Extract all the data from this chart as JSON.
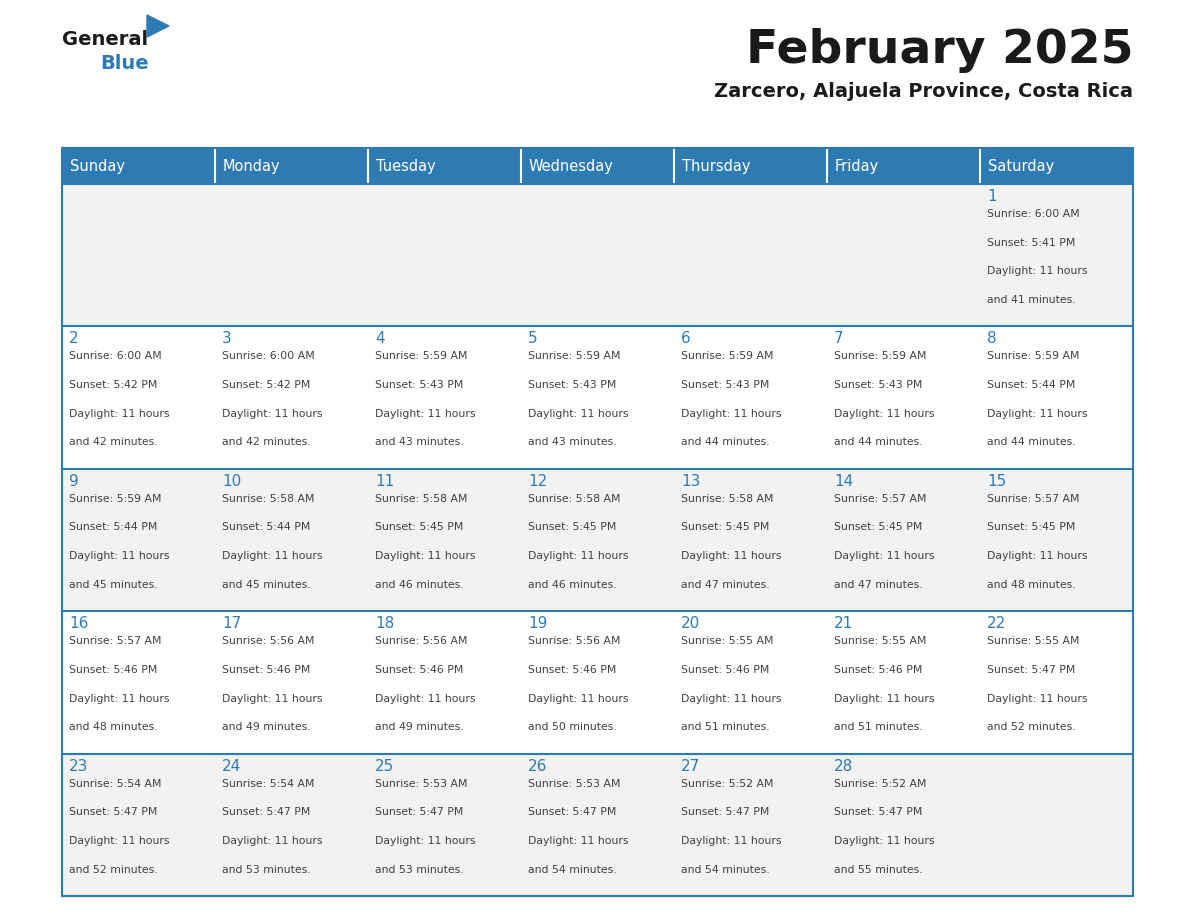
{
  "title": "February 2025",
  "subtitle": "Zarcero, Alajuela Province, Costa Rica",
  "days_of_week": [
    "Sunday",
    "Monday",
    "Tuesday",
    "Wednesday",
    "Thursday",
    "Friday",
    "Saturday"
  ],
  "header_bg": "#2E7BB4",
  "header_text": "#FFFFFF",
  "cell_bg_odd": "#F2F2F2",
  "cell_bg_even": "#FFFFFF",
  "border_color": "#2E7BB4",
  "day_number_color": "#2E7BB4",
  "cell_text_color": "#404040",
  "title_color": "#1a1a1a",
  "subtitle_color": "#1a1a1a",
  "logo_general_color": "#1a1a1a",
  "logo_blue_color": "#2E7BB4",
  "calendar_data": [
    [
      null,
      null,
      null,
      null,
      null,
      null,
      {
        "day": 1,
        "sunrise": "6:00 AM",
        "sunset": "5:41 PM",
        "daylight": "11 hours and 41 minutes."
      }
    ],
    [
      {
        "day": 2,
        "sunrise": "6:00 AM",
        "sunset": "5:42 PM",
        "daylight": "11 hours and 42 minutes."
      },
      {
        "day": 3,
        "sunrise": "6:00 AM",
        "sunset": "5:42 PM",
        "daylight": "11 hours and 42 minutes."
      },
      {
        "day": 4,
        "sunrise": "5:59 AM",
        "sunset": "5:43 PM",
        "daylight": "11 hours and 43 minutes."
      },
      {
        "day": 5,
        "sunrise": "5:59 AM",
        "sunset": "5:43 PM",
        "daylight": "11 hours and 43 minutes."
      },
      {
        "day": 6,
        "sunrise": "5:59 AM",
        "sunset": "5:43 PM",
        "daylight": "11 hours and 44 minutes."
      },
      {
        "day": 7,
        "sunrise": "5:59 AM",
        "sunset": "5:43 PM",
        "daylight": "11 hours and 44 minutes."
      },
      {
        "day": 8,
        "sunrise": "5:59 AM",
        "sunset": "5:44 PM",
        "daylight": "11 hours and 44 minutes."
      }
    ],
    [
      {
        "day": 9,
        "sunrise": "5:59 AM",
        "sunset": "5:44 PM",
        "daylight": "11 hours and 45 minutes."
      },
      {
        "day": 10,
        "sunrise": "5:58 AM",
        "sunset": "5:44 PM",
        "daylight": "11 hours and 45 minutes."
      },
      {
        "day": 11,
        "sunrise": "5:58 AM",
        "sunset": "5:45 PM",
        "daylight": "11 hours and 46 minutes."
      },
      {
        "day": 12,
        "sunrise": "5:58 AM",
        "sunset": "5:45 PM",
        "daylight": "11 hours and 46 minutes."
      },
      {
        "day": 13,
        "sunrise": "5:58 AM",
        "sunset": "5:45 PM",
        "daylight": "11 hours and 47 minutes."
      },
      {
        "day": 14,
        "sunrise": "5:57 AM",
        "sunset": "5:45 PM",
        "daylight": "11 hours and 47 minutes."
      },
      {
        "day": 15,
        "sunrise": "5:57 AM",
        "sunset": "5:45 PM",
        "daylight": "11 hours and 48 minutes."
      }
    ],
    [
      {
        "day": 16,
        "sunrise": "5:57 AM",
        "sunset": "5:46 PM",
        "daylight": "11 hours and 48 minutes."
      },
      {
        "day": 17,
        "sunrise": "5:56 AM",
        "sunset": "5:46 PM",
        "daylight": "11 hours and 49 minutes."
      },
      {
        "day": 18,
        "sunrise": "5:56 AM",
        "sunset": "5:46 PM",
        "daylight": "11 hours and 49 minutes."
      },
      {
        "day": 19,
        "sunrise": "5:56 AM",
        "sunset": "5:46 PM",
        "daylight": "11 hours and 50 minutes."
      },
      {
        "day": 20,
        "sunrise": "5:55 AM",
        "sunset": "5:46 PM",
        "daylight": "11 hours and 51 minutes."
      },
      {
        "day": 21,
        "sunrise": "5:55 AM",
        "sunset": "5:46 PM",
        "daylight": "11 hours and 51 minutes."
      },
      {
        "day": 22,
        "sunrise": "5:55 AM",
        "sunset": "5:47 PM",
        "daylight": "11 hours and 52 minutes."
      }
    ],
    [
      {
        "day": 23,
        "sunrise": "5:54 AM",
        "sunset": "5:47 PM",
        "daylight": "11 hours and 52 minutes."
      },
      {
        "day": 24,
        "sunrise": "5:54 AM",
        "sunset": "5:47 PM",
        "daylight": "11 hours and 53 minutes."
      },
      {
        "day": 25,
        "sunrise": "5:53 AM",
        "sunset": "5:47 PM",
        "daylight": "11 hours and 53 minutes."
      },
      {
        "day": 26,
        "sunrise": "5:53 AM",
        "sunset": "5:47 PM",
        "daylight": "11 hours and 54 minutes."
      },
      {
        "day": 27,
        "sunrise": "5:52 AM",
        "sunset": "5:47 PM",
        "daylight": "11 hours and 54 minutes."
      },
      {
        "day": 28,
        "sunrise": "5:52 AM",
        "sunset": "5:47 PM",
        "daylight": "11 hours and 55 minutes."
      },
      null
    ]
  ],
  "fig_width": 11.88,
  "fig_height": 9.18,
  "dpi": 100
}
